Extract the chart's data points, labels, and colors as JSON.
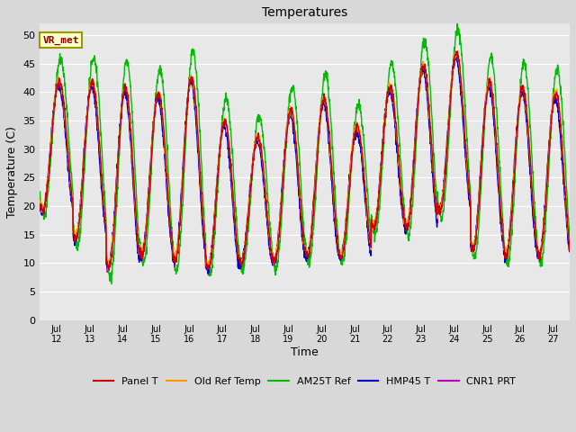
{
  "title": "Temperatures",
  "xlabel": "Time",
  "ylabel": "Temperature (C)",
  "annotation_text": "VR_met",
  "ylim": [
    0,
    52
  ],
  "yticks": [
    0,
    5,
    10,
    15,
    20,
    25,
    30,
    35,
    40,
    45,
    50
  ],
  "legend_labels": [
    "Panel T",
    "Old Ref Temp",
    "AM25T Ref",
    "HMP45 T",
    "CNR1 PRT"
  ],
  "legend_colors": [
    "#cc0000",
    "#ff9900",
    "#00bb00",
    "#0000cc",
    "#bb00bb"
  ],
  "tick_labels": [
    "Jul 12",
    "Jul 13",
    "Jul 14",
    "Jul 15",
    "Jul 16",
    "Jul 17",
    "Jul 18",
    "Jul 19",
    "Jul 20",
    "Jul 21",
    "Jul 22",
    "Jul 23",
    "Jul 24",
    "Jul 25",
    "Jul 26",
    "Jul 27"
  ],
  "n_points": 2000,
  "daily_ranges": [
    [
      18,
      43
    ],
    [
      13,
      43
    ],
    [
      8,
      42
    ],
    [
      10,
      41
    ],
    [
      9,
      44
    ],
    [
      8,
      36
    ],
    [
      9,
      33
    ],
    [
      9,
      38
    ],
    [
      10,
      40
    ],
    [
      10,
      35
    ],
    [
      15,
      42
    ],
    [
      15,
      46
    ],
    [
      18,
      48
    ],
    [
      11,
      43
    ],
    [
      10,
      42
    ],
    [
      10,
      41
    ]
  ],
  "fig_width": 6.4,
  "fig_height": 4.8,
  "dpi": 100
}
